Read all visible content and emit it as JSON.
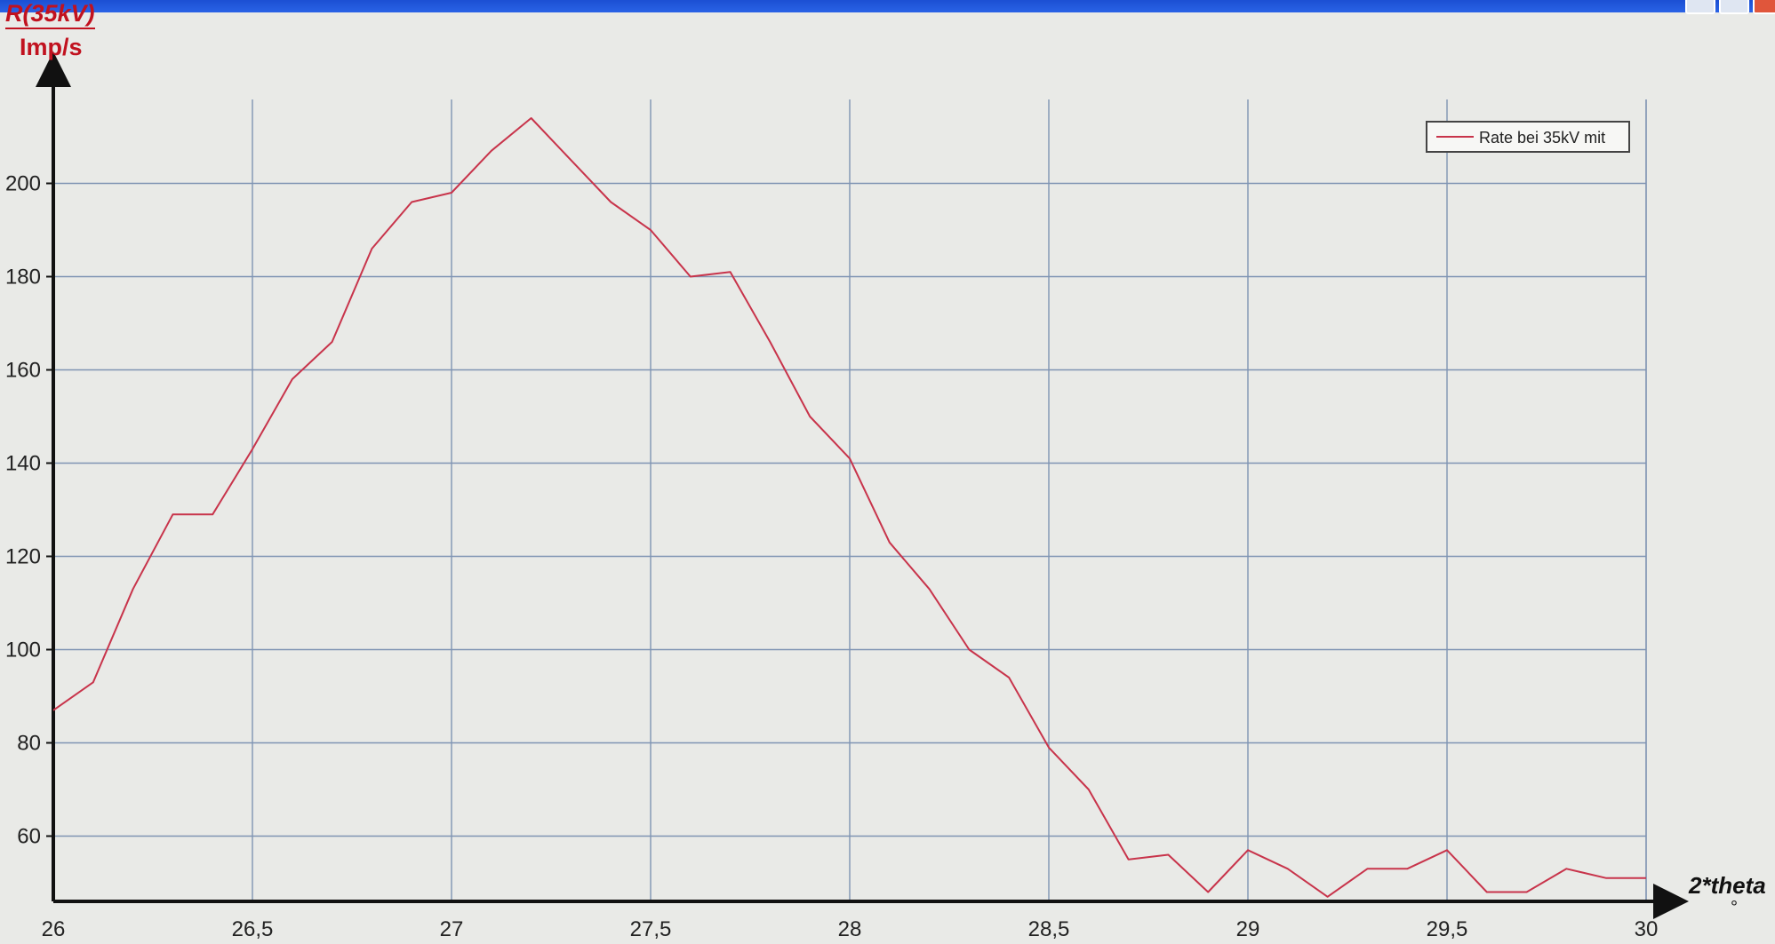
{
  "chart_data": {
    "type": "line",
    "ylabel": "R(35kV)",
    "yunit": "Imp/s",
    "xlabel": "2*theta",
    "xunit": "°",
    "xlim": [
      26,
      30
    ],
    "ylim": [
      46,
      218
    ],
    "x_ticks": [
      26,
      26.5,
      27,
      27.5,
      28,
      28.5,
      29,
      29.5,
      30
    ],
    "x_tick_labels": [
      "26",
      "26,5",
      "27",
      "27,5",
      "28",
      "28,5",
      "29",
      "29,5",
      "30"
    ],
    "y_ticks": [
      60,
      80,
      100,
      120,
      140,
      160,
      180,
      200
    ],
    "y_tick_labels": [
      "60",
      "80",
      "100",
      "120",
      "140",
      "160",
      "180",
      "200"
    ],
    "grid": true,
    "legend_position": "top-right",
    "series": [
      {
        "name": "Rate bei 35kV mit",
        "color": "#c8344b",
        "x": [
          26.0,
          26.1,
          26.2,
          26.3,
          26.4,
          26.5,
          26.6,
          26.7,
          26.8,
          26.9,
          27.0,
          27.1,
          27.2,
          27.3,
          27.4,
          27.5,
          27.6,
          27.7,
          27.8,
          27.9,
          28.0,
          28.1,
          28.2,
          28.3,
          28.4,
          28.5,
          28.6,
          28.7,
          28.8,
          28.9,
          29.0,
          29.1,
          29.2,
          29.3,
          29.4,
          29.5,
          29.6,
          29.7,
          29.8,
          29.9,
          30.0
        ],
        "y": [
          87,
          93,
          113,
          129,
          129,
          143,
          158,
          166,
          186,
          196,
          198,
          207,
          214,
          205,
          196,
          190,
          180,
          181,
          166,
          150,
          141,
          123,
          113,
          100,
          94,
          79,
          70,
          55,
          56,
          48,
          57,
          53,
          47,
          53,
          53,
          57,
          48,
          48,
          53,
          51,
          51
        ]
      }
    ]
  }
}
